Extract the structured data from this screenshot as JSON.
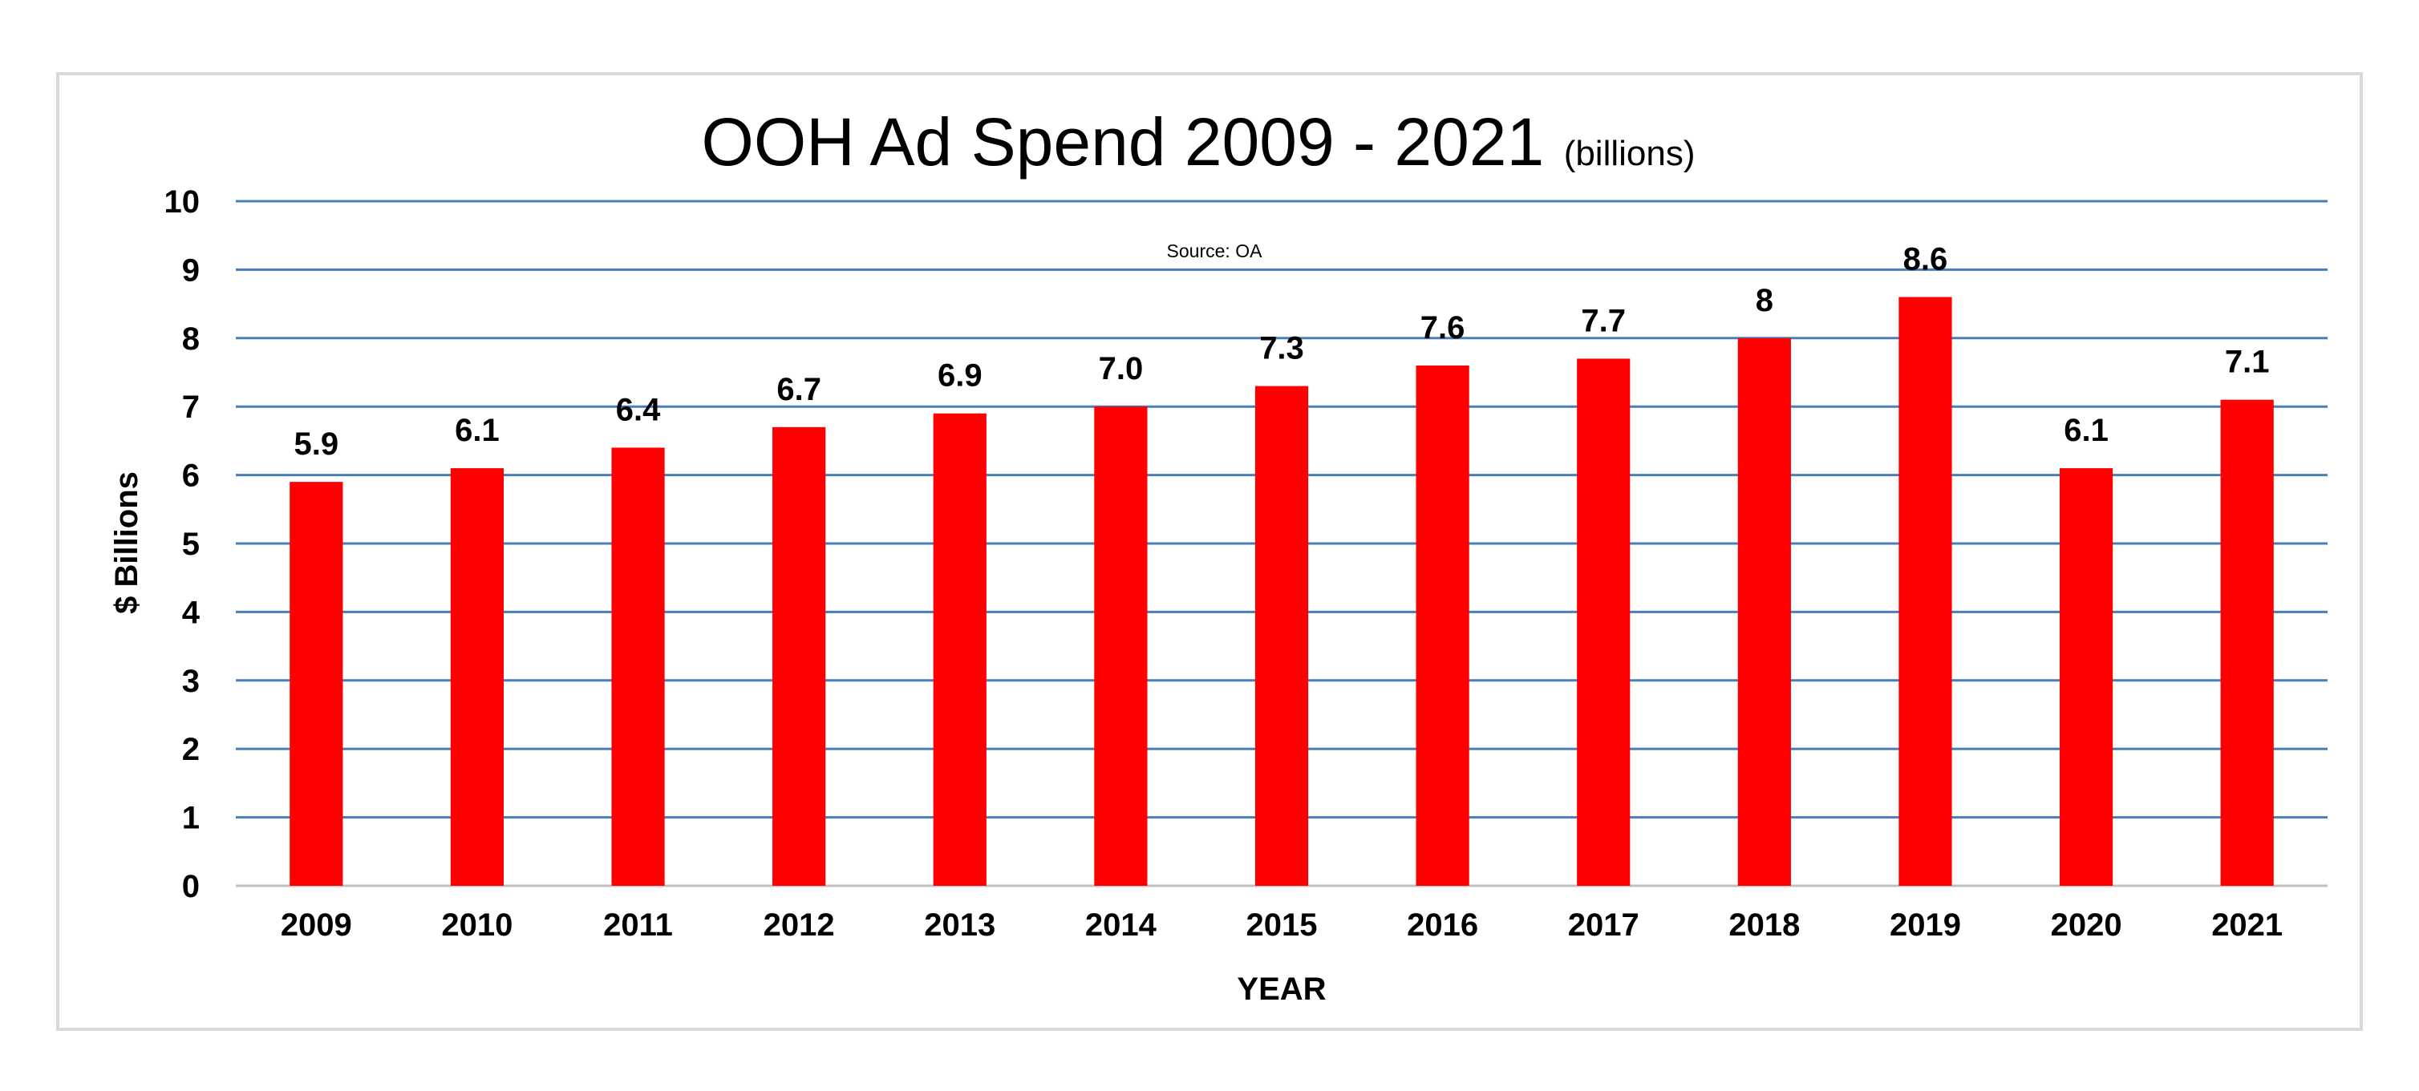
{
  "chart_data": {
    "type": "bar",
    "title": "OOH Ad Spend 2009 - 2021",
    "subtitle": "(billions)",
    "annotation": "Source: OA",
    "xlabel": "YEAR",
    "ylabel": "$ Billions",
    "ylim": [
      0,
      10
    ],
    "yticks": [
      0,
      1,
      2,
      3,
      4,
      5,
      6,
      7,
      8,
      9,
      10
    ],
    "grid": true,
    "legend": "none",
    "categories": [
      "2009",
      "2010",
      "2011",
      "2012",
      "2013",
      "2014",
      "2015",
      "2016",
      "2017",
      "2018",
      "2019",
      "2020",
      "2021"
    ],
    "series": [
      {
        "values": [
          5.9,
          6.1,
          6.4,
          6.7,
          6.9,
          7.0,
          7.3,
          7.6,
          7.7,
          8,
          8.6,
          6.1,
          7.1
        ],
        "data_labels": [
          "5.9",
          "6.1",
          "6.4",
          "6.7",
          "6.9",
          "7.0",
          "7.3",
          "7.6",
          "7.7",
          "8",
          "8.6",
          "6.1",
          "7.1"
        ]
      }
    ],
    "colors": {
      "bar": "#ff0000",
      "gridline": "#4a7ebb",
      "frame": "#d9d9d9"
    }
  }
}
